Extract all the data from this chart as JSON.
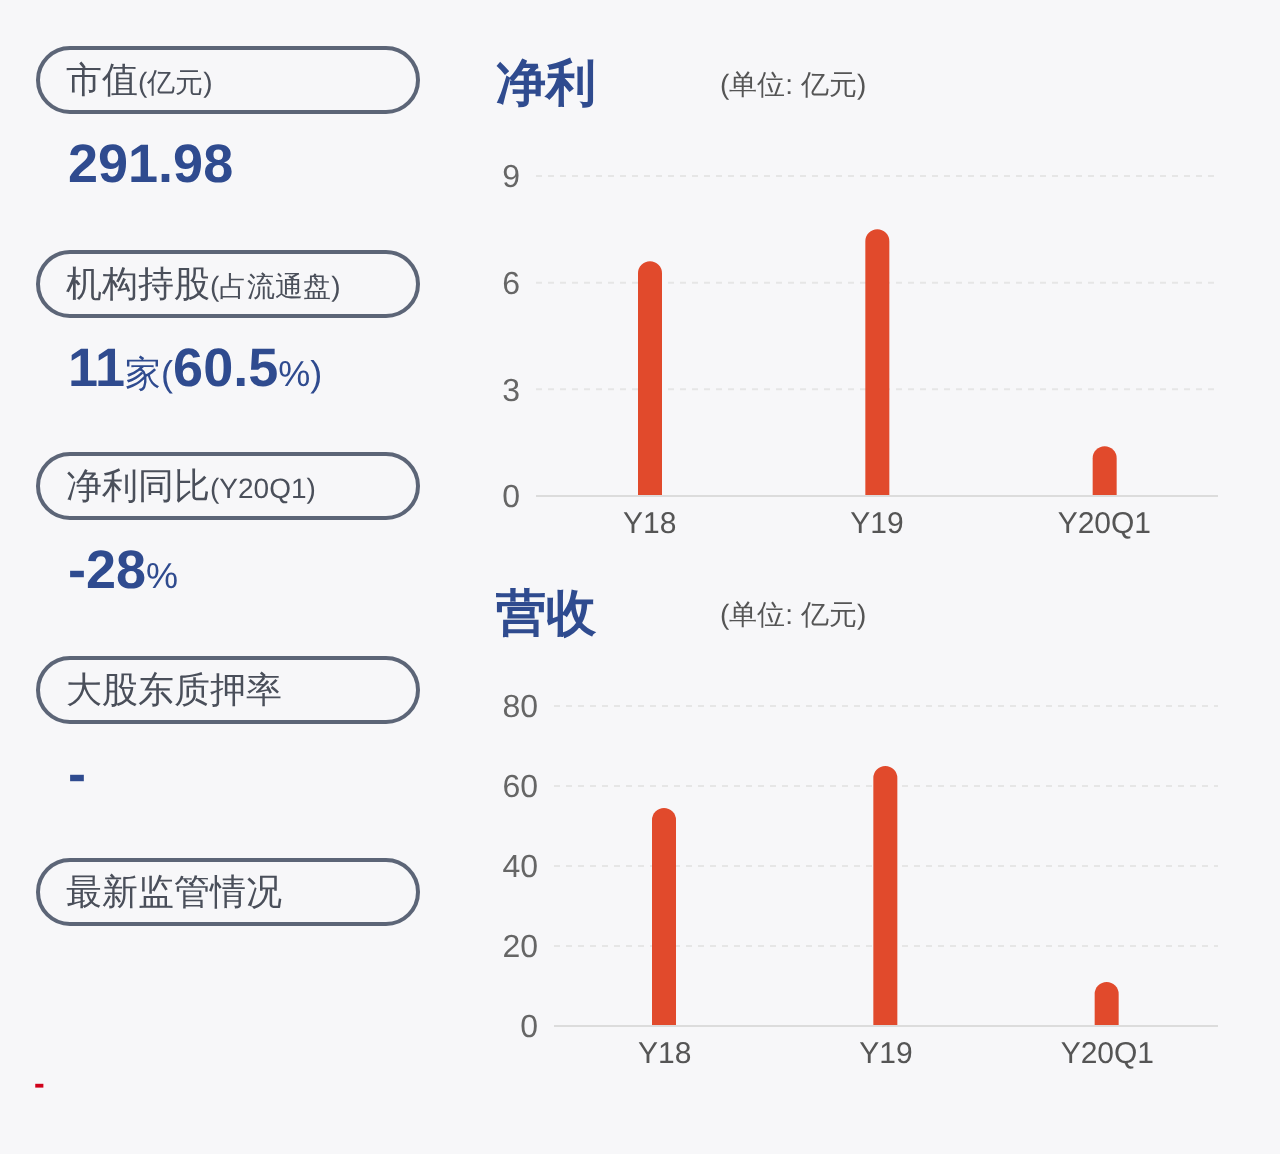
{
  "chart_data": [
    {
      "type": "other",
      "annotations": [
        "市值(亿元)",
        "291.98",
        "机构持股(占流通盘)",
        "11家(60.5%)",
        "净利同比(Y20Q1)",
        "-28%",
        "大股东质押率",
        "-",
        "最新监管情况",
        "-"
      ]
    },
    {
      "type": "bar",
      "title": "净利",
      "subtitle": "(单位: 亿元)",
      "categories": [
        "Y18",
        "Y19",
        "Y20Q1"
      ],
      "values": [
        6.6,
        7.5,
        1.4
      ],
      "color": "#e14a2c",
      "ylim": [
        0,
        9
      ],
      "yticks": [
        0,
        3,
        6,
        9
      ],
      "grid": "y"
    },
    {
      "type": "bar",
      "title": "营收",
      "subtitle": "(单位: 亿元)",
      "categories": [
        "Y18",
        "Y19",
        "Y20Q1"
      ],
      "values": [
        54.5,
        65,
        11
      ],
      "color": "#e14a2c",
      "ylim": [
        0,
        80
      ],
      "yticks": [
        0,
        20,
        40,
        60,
        80
      ],
      "grid": "y"
    }
  ]
}
